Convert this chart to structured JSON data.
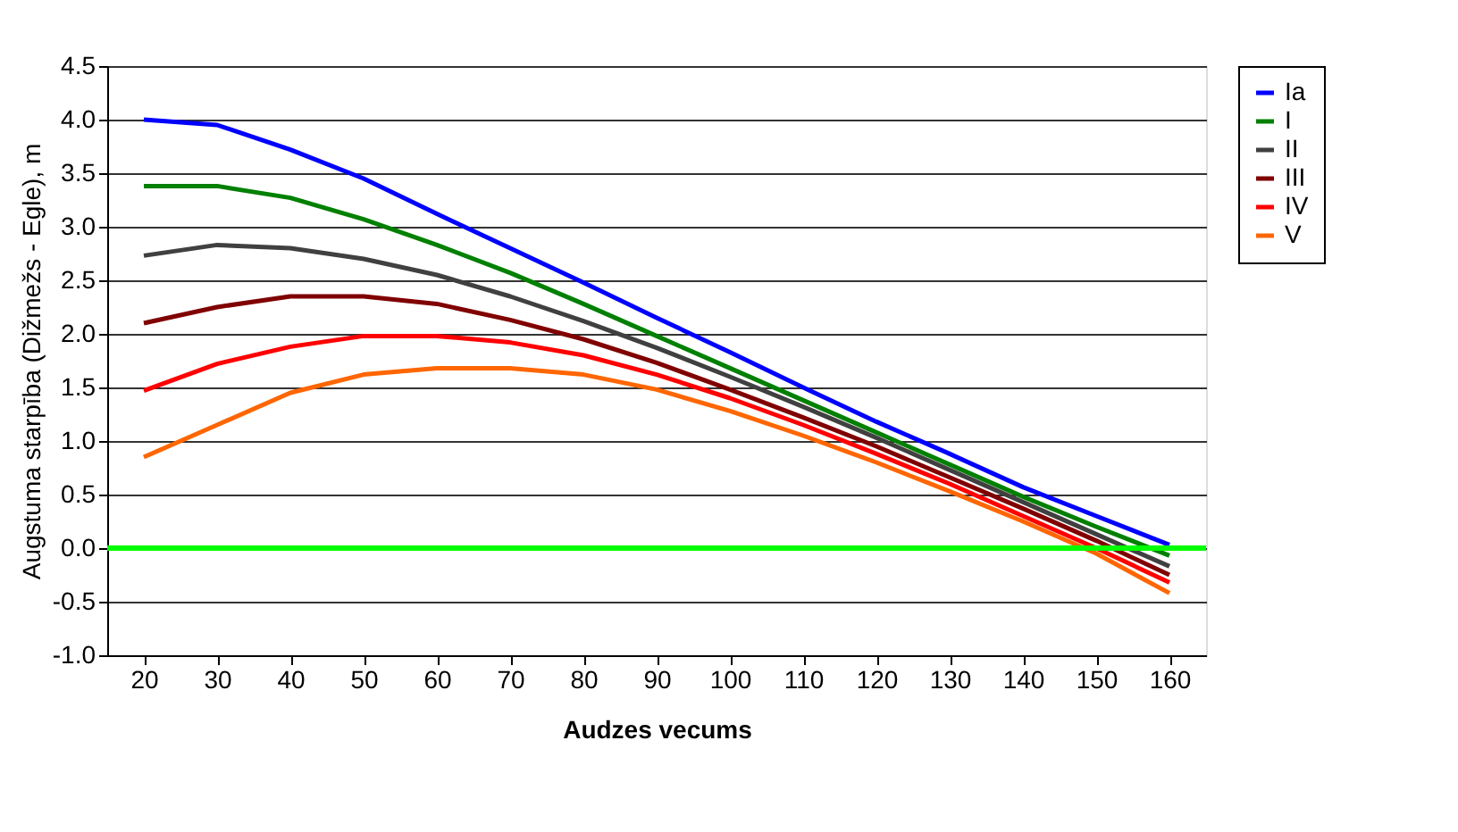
{
  "chart_data": {
    "type": "line",
    "xlabel": "Audzes vecums",
    "ylabel": "Augstuma starpība (Dižmežs - Egle), m",
    "categories": [
      "20",
      "30",
      "40",
      "50",
      "60",
      "70",
      "80",
      "90",
      "100",
      "110",
      "120",
      "130",
      "140",
      "150",
      "160"
    ],
    "series": [
      {
        "name": "Ia",
        "color": "#0000ff",
        "values": [
          4.0,
          3.95,
          3.72,
          3.45,
          3.12,
          2.8,
          2.48,
          2.15,
          1.83,
          1.5,
          1.18,
          0.88,
          0.57,
          0.3,
          0.03
        ]
      },
      {
        "name": "I",
        "color": "#008000",
        "values": [
          3.38,
          3.38,
          3.27,
          3.07,
          2.83,
          2.57,
          2.28,
          1.98,
          1.68,
          1.38,
          1.08,
          0.78,
          0.48,
          0.2,
          -0.07
        ]
      },
      {
        "name": "II",
        "color": "#404040",
        "values": [
          2.73,
          2.83,
          2.8,
          2.7,
          2.55,
          2.35,
          2.12,
          1.87,
          1.6,
          1.32,
          1.03,
          0.73,
          0.43,
          0.13,
          -0.17
        ]
      },
      {
        "name": "III",
        "color": "#800000",
        "values": [
          2.1,
          2.25,
          2.35,
          2.35,
          2.28,
          2.13,
          1.95,
          1.73,
          1.48,
          1.22,
          0.95,
          0.66,
          0.37,
          0.07,
          -0.25
        ]
      },
      {
        "name": "IV",
        "color": "#ff0000",
        "values": [
          1.47,
          1.72,
          1.88,
          1.98,
          1.98,
          1.92,
          1.8,
          1.62,
          1.4,
          1.15,
          0.88,
          0.6,
          0.3,
          0.0,
          -0.32
        ]
      },
      {
        "name": "V",
        "color": "#ff6600",
        "values": [
          0.85,
          1.15,
          1.45,
          1.62,
          1.68,
          1.68,
          1.62,
          1.48,
          1.28,
          1.05,
          0.8,
          0.53,
          0.25,
          -0.05,
          -0.42
        ]
      }
    ],
    "ylim": [
      -1.0,
      4.5
    ],
    "yticks": [
      {
        "value": -1.0,
        "label": "-1.0"
      },
      {
        "value": -0.5,
        "label": "-0.5"
      },
      {
        "value": 0.0,
        "label": "0.0"
      },
      {
        "value": 0.5,
        "label": "0.5"
      },
      {
        "value": 1.0,
        "label": "1.0"
      },
      {
        "value": 1.5,
        "label": "1.5"
      },
      {
        "value": 2.0,
        "label": "2.0"
      },
      {
        "value": 2.5,
        "label": "2.5"
      },
      {
        "value": 3.0,
        "label": "3.0"
      },
      {
        "value": 3.5,
        "label": "3.5"
      },
      {
        "value": 4.0,
        "label": "4.0"
      },
      {
        "value": 4.5,
        "label": "4.5"
      }
    ],
    "ref_lines": [
      {
        "axis": "y",
        "value": 0,
        "color": "#00ff00"
      }
    ],
    "grid": "y",
    "legend": "right",
    "marker": "none",
    "line_style": "solid"
  }
}
